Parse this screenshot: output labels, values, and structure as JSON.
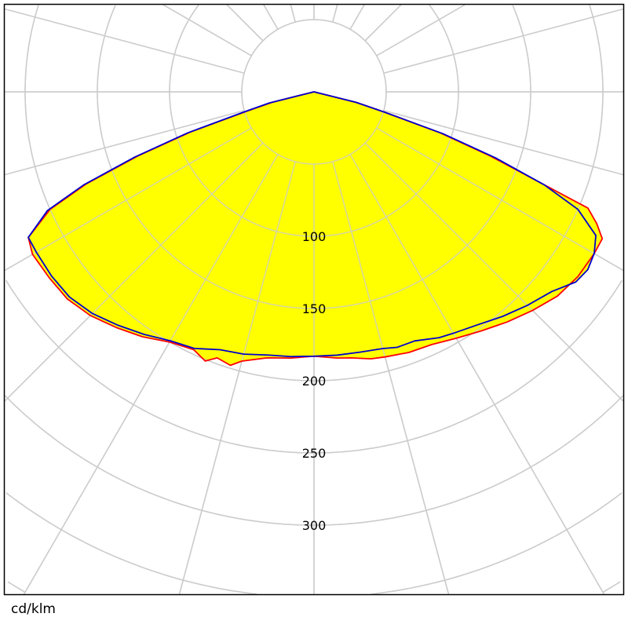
{
  "chart_data": {
    "type": "polar",
    "unit_label": "cd/klm",
    "angle_convention": "degrees from nadir, negative = left half",
    "radial_ticks": [
      100,
      150,
      200,
      250,
      300
    ],
    "grid_circles": [
      50,
      100,
      150,
      200,
      250,
      300,
      350,
      400,
      450
    ],
    "angular_grid_step_deg": 15,
    "grid": true,
    "fill_color": "#ffff00",
    "grid_color": "#cccccc",
    "series": [
      {
        "color": "#ff0000",
        "points": [
          [
            -80,
            0
          ],
          [
            -76,
            30
          ],
          [
            -74,
            48
          ],
          [
            -72,
            90
          ],
          [
            -70,
            130
          ],
          [
            -68,
            170
          ],
          [
            -66,
            200
          ],
          [
            -63,
            222
          ],
          [
            -60,
            225
          ],
          [
            -55,
            224
          ],
          [
            -50,
            223
          ],
          [
            -45,
            219
          ],
          [
            -40,
            213
          ],
          [
            -35,
            207
          ],
          [
            -30,
            200
          ],
          [
            -25,
            197
          ],
          [
            -22,
            201
          ],
          [
            -20,
            196
          ],
          [
            -17,
            198
          ],
          [
            -15,
            193
          ],
          [
            -10,
            187
          ],
          [
            -5,
            185
          ],
          [
            0,
            183
          ],
          [
            5,
            185
          ],
          [
            8,
            186
          ],
          [
            12,
            189
          ],
          [
            15,
            190
          ],
          [
            20,
            192
          ],
          [
            25,
            193
          ],
          [
            30,
            197
          ],
          [
            35,
            202
          ],
          [
            40,
            208
          ],
          [
            45,
            214
          ],
          [
            50,
            220
          ],
          [
            55,
            223
          ],
          [
            60,
            224
          ],
          [
            63,
            224
          ],
          [
            65,
            216
          ],
          [
            67,
            206
          ],
          [
            70,
            130
          ],
          [
            72,
            92
          ],
          [
            74,
            50
          ],
          [
            76,
            30
          ],
          [
            80,
            0
          ]
        ]
      },
      {
        "color": "#0000cc",
        "points": [
          [
            -80,
            0
          ],
          [
            -76,
            32
          ],
          [
            -74,
            50
          ],
          [
            -72,
            92
          ],
          [
            -70,
            132
          ],
          [
            -68,
            172
          ],
          [
            -66,
            202
          ],
          [
            -63,
            222
          ],
          [
            -60,
            222
          ],
          [
            -55,
            222
          ],
          [
            -50,
            221
          ],
          [
            -45,
            217
          ],
          [
            -40,
            211
          ],
          [
            -35,
            205
          ],
          [
            -30,
            199
          ],
          [
            -25,
            196
          ],
          [
            -20,
            190
          ],
          [
            -15,
            188
          ],
          [
            -10,
            185
          ],
          [
            -5,
            184
          ],
          [
            0,
            183
          ],
          [
            5,
            183
          ],
          [
            10,
            183
          ],
          [
            15,
            184
          ],
          [
            18,
            186
          ],
          [
            22,
            186
          ],
          [
            27,
            191
          ],
          [
            30,
            193
          ],
          [
            35,
            197
          ],
          [
            40,
            203
          ],
          [
            45,
            209
          ],
          [
            50,
            215
          ],
          [
            54,
            224
          ],
          [
            57,
            226
          ],
          [
            60,
            224
          ],
          [
            63,
            219
          ],
          [
            66,
            200
          ],
          [
            68,
            172
          ],
          [
            70,
            134
          ],
          [
            72,
            94
          ],
          [
            74,
            50
          ],
          [
            76,
            30
          ],
          [
            80,
            0
          ]
        ]
      }
    ]
  }
}
